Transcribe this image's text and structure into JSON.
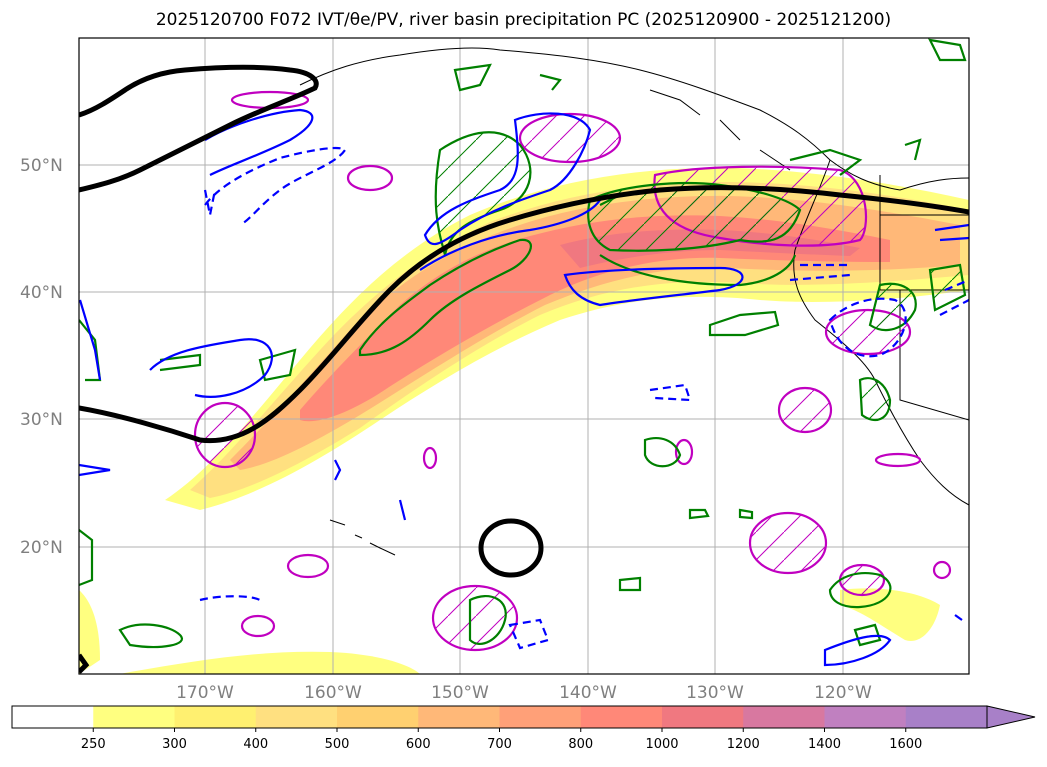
{
  "title": "2025120700 F072 IVT/θe/PV, river basin precipitation PC (2025120900 - 2025121200)",
  "map": {
    "lat_labels": [
      "50°N",
      "40°N",
      "30°N",
      "20°N"
    ],
    "lon_labels": [
      "170°W",
      "160°W",
      "150°W",
      "140°W",
      "130°W",
      "120°W"
    ],
    "colors": {
      "ivt_black_contour": "#000000",
      "theta_e_blue": "#0000ff",
      "pv_green": "#008000",
      "precip_magenta": "#c000c0",
      "coastline": "#000000",
      "grid": "#b0b0b0"
    }
  },
  "colorbar": {
    "ticks": [
      "250",
      "300",
      "400",
      "500",
      "600",
      "700",
      "800",
      "1000",
      "1200",
      "1400",
      "1600"
    ],
    "colors": [
      "#ffffff",
      "#ffff80",
      "#fff070",
      "#ffe080",
      "#ffd070",
      "#ffb878",
      "#ffa078",
      "#ff8878",
      "#f07880",
      "#d878a0",
      "#c080c0",
      "#a880c8"
    ],
    "extend": "max"
  }
}
